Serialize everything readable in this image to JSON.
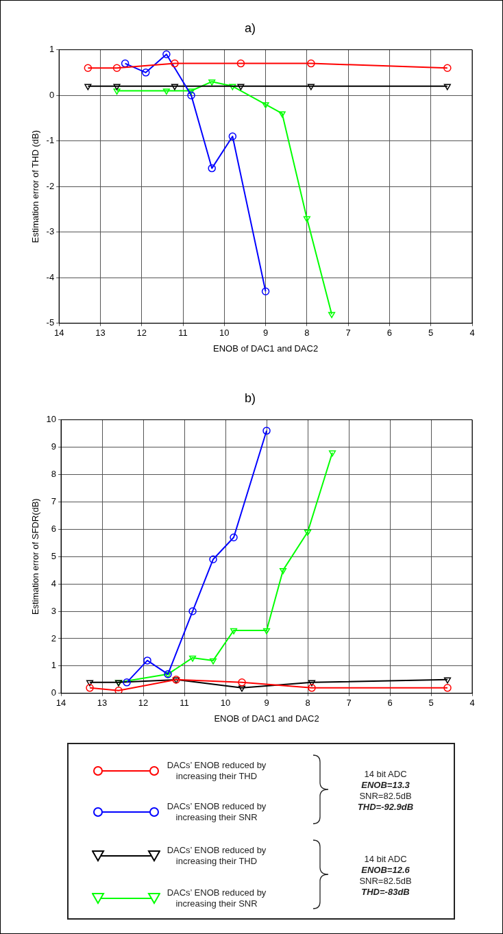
{
  "chart_data": [
    {
      "type": "line",
      "title": "a)",
      "xlabel": "ENOB of DAC1 and DAC2",
      "ylabel": "Estimation error of THD (dB)",
      "xlim": [
        14,
        4
      ],
      "xticks": [
        14,
        13,
        12,
        11,
        10,
        9,
        8,
        7,
        6,
        5,
        4
      ],
      "ylim": [
        -5,
        1
      ],
      "yticks": [
        -5,
        -4,
        -3,
        -2,
        -1,
        0,
        1
      ],
      "grid": true,
      "legend": false,
      "series": [
        {
          "color": "#ff0000",
          "marker": "circle",
          "x": [
            13.3,
            12.6,
            11.2,
            9.6,
            7.9,
            4.6
          ],
          "values": [
            0.6,
            0.6,
            0.7,
            0.7,
            0.7,
            0.6
          ]
        },
        {
          "color": "#0000ff",
          "marker": "circle",
          "x": [
            12.4,
            11.9,
            11.4,
            10.8,
            10.3,
            9.8,
            9.0
          ],
          "values": [
            0.7,
            0.5,
            0.9,
            0.0,
            -1.6,
            -0.9,
            -4.3
          ]
        },
        {
          "color": "#000000",
          "marker": "triangle",
          "x": [
            13.3,
            12.6,
            11.2,
            9.6,
            7.9,
            4.6
          ],
          "values": [
            0.2,
            0.2,
            0.2,
            0.2,
            0.2,
            0.2
          ]
        },
        {
          "color": "#00ff00",
          "marker": "triangle",
          "x": [
            12.6,
            11.4,
            10.8,
            10.3,
            9.8,
            9.0,
            8.6,
            8.0,
            7.4
          ],
          "values": [
            0.1,
            0.1,
            0.1,
            0.3,
            0.2,
            -0.2,
            -0.4,
            -2.7,
            -4.8
          ]
        }
      ]
    },
    {
      "type": "line",
      "title": "b)",
      "xlabel": "ENOB of DAC1 and DAC2",
      "ylabel": "Estimation error of SFDR(dB)",
      "xlim": [
        14,
        4
      ],
      "xticks": [
        14,
        13,
        12,
        11,
        10,
        9,
        8,
        7,
        6,
        5,
        4
      ],
      "ylim": [
        0,
        10
      ],
      "yticks": [
        0,
        1,
        2,
        3,
        4,
        5,
        6,
        7,
        8,
        9,
        10
      ],
      "grid": true,
      "legend": "bottom",
      "series": [
        {
          "name": "DACs’ ENOB reduced by increasing their THD",
          "color": "#ff0000",
          "marker": "circle",
          "x": [
            13.3,
            12.6,
            11.2,
            9.6,
            7.9,
            4.6
          ],
          "values": [
            0.2,
            0.1,
            0.5,
            0.4,
            0.2,
            0.2
          ]
        },
        {
          "name": "DACs’ ENOB reduced by increasing their SNR",
          "color": "#0000ff",
          "marker": "circle",
          "x": [
            12.4,
            11.9,
            11.4,
            10.8,
            10.3,
            9.8,
            9.0
          ],
          "values": [
            0.4,
            1.2,
            0.7,
            3.0,
            4.9,
            5.7,
            9.6
          ]
        },
        {
          "name": "DACs’ ENOB reduced by increasing their THD",
          "color": "#000000",
          "marker": "triangle",
          "x": [
            13.3,
            12.6,
            11.2,
            9.6,
            7.9,
            4.6
          ],
          "values": [
            0.4,
            0.4,
            0.5,
            0.2,
            0.4,
            0.5
          ]
        },
        {
          "name": "DACs’ ENOB reduced by increasing their SNR",
          "color": "#00ff00",
          "marker": "triangle",
          "x": [
            12.6,
            11.4,
            10.8,
            10.3,
            9.8,
            9.0,
            8.6,
            8.0,
            7.4
          ],
          "values": [
            0.4,
            0.7,
            1.3,
            1.2,
            2.3,
            2.3,
            4.5,
            5.9,
            8.8
          ]
        }
      ],
      "annotations": [
        "14 bit ADC",
        "ENOB=13.3",
        "SNR=82.5dB",
        "THD=-92.9dB",
        "14 bit ADC",
        "ENOB=12.6",
        "SNR=82.5dB",
        "THD=-83dB"
      ]
    }
  ]
}
